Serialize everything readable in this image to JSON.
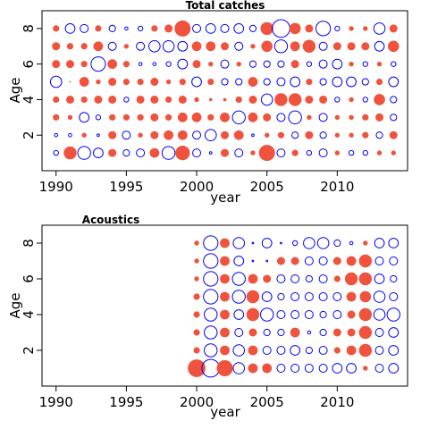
{
  "colors": {
    "positive": "#f0533d",
    "negative": "#0000ff",
    "axis": "#000000"
  },
  "chart_data": [
    {
      "type": "scatter",
      "title": "Total catches",
      "xlabel": "year",
      "ylabel": "Age",
      "xlim": [
        1989,
        2015
      ],
      "ylim": [
        0,
        9
      ],
      "xticks": [
        1990,
        1995,
        2000,
        2005,
        2010
      ],
      "yticks": [
        2,
        4,
        6,
        8
      ],
      "x": [
        1990,
        1991,
        1992,
        1993,
        1994,
        1995,
        1996,
        1997,
        1998,
        1999,
        2000,
        2001,
        2002,
        2003,
        2004,
        2005,
        2006,
        2007,
        2008,
        2009,
        2010,
        2011,
        2012,
        2013,
        2014
      ],
      "ages": [
        1,
        2,
        3,
        4,
        5,
        6,
        7,
        8
      ],
      "residuals": [
        [
          -0.3,
          0.8,
          -0.8,
          -0.6,
          0.5,
          -0.4,
          -0.5,
          0.6,
          -0.8,
          0.9,
          -0.5,
          -0.15,
          0.5,
          -0.5,
          0.3,
          1.0,
          -0.5,
          0.4,
          -0.3,
          -0.5,
          0.3,
          -0.3,
          -0.3,
          0.3,
          0.3
        ],
        [
          -0.2,
          -0.2,
          0.3,
          -0.15,
          0.5,
          -0.5,
          0.3,
          0.5,
          0.6,
          0.6,
          -0.5,
          -0.7,
          0.5,
          0.6,
          -0.15,
          0.3,
          0.4,
          -0.4,
          0.5,
          -0.4,
          0.3,
          0.3,
          0.4,
          -0.4,
          0.5
        ],
        [
          0.4,
          0.3,
          -0.6,
          -0.3,
          0.4,
          0.4,
          0.4,
          0.5,
          0.4,
          0.6,
          0.6,
          0.4,
          0.6,
          -0.8,
          0.6,
          0.5,
          -0.5,
          -0.8,
          0.3,
          -0.5,
          0.3,
          0.3,
          0.4,
          0.5,
          -0.4
        ],
        [
          0.4,
          0.5,
          0.4,
          0.5,
          0.5,
          -0.3,
          0.5,
          0.5,
          0.4,
          0.5,
          0.3,
          0.2,
          0.2,
          0.4,
          0.5,
          -0.7,
          0.8,
          0.8,
          0.5,
          0.5,
          -0.3,
          0.3,
          -0.3,
          0.7,
          -0.4
        ],
        [
          -0.7,
          0.1,
          0.6,
          0.3,
          0.5,
          0.4,
          0.4,
          0.5,
          0.3,
          0.4,
          -0.6,
          0.4,
          -0.4,
          -0.4,
          0.6,
          -0.4,
          -0.5,
          -0.6,
          0.4,
          -0.4,
          -0.6,
          -0.6,
          -0.4,
          0.4,
          -0.6
        ],
        [
          0.5,
          0.5,
          0.4,
          -0.9,
          0.6,
          0.4,
          -0.2,
          -0.2,
          -0.3,
          -0.6,
          0.5,
          0.3,
          -0.5,
          0.3,
          -0.4,
          -0.4,
          -0.4,
          0.5,
          -0.3,
          -0.5,
          -0.6,
          0.3,
          -0.3,
          0.3,
          -0.3
        ],
        [
          0.5,
          0.4,
          0.4,
          0.6,
          -0.5,
          0.3,
          -0.5,
          -0.7,
          -0.7,
          -0.6,
          0.6,
          0.6,
          0.5,
          -0.5,
          0.3,
          0.7,
          -0.8,
          0.6,
          0.8,
          -0.5,
          0.5,
          0.5,
          0.5,
          -0.6,
          0.7
        ],
        [
          0.4,
          -0.6,
          -0.5,
          0.4,
          -0.4,
          -0.2,
          -0.3,
          0.4,
          0.5,
          1.0,
          -0.5,
          -0.6,
          -0.5,
          -0.6,
          -0.4,
          0.8,
          -1.1,
          0.7,
          0.5,
          -0.9,
          -0.3,
          0.3,
          0.3,
          -0.7,
          0.5
        ]
      ]
    },
    {
      "type": "scatter",
      "title": "Acoustics",
      "xlabel": "year",
      "ylabel": "Age",
      "xlim": [
        1989,
        2015
      ],
      "ylim": [
        0,
        9
      ],
      "xticks": [
        1990,
        1995,
        2000,
        2005,
        2010
      ],
      "yticks": [
        2,
        4,
        6,
        8
      ],
      "x": [
        2000,
        2001,
        2002,
        2003,
        2004,
        2005,
        2006,
        2007,
        2008,
        2009,
        2010,
        2011,
        2012,
        2013,
        2014
      ],
      "ages": [
        1,
        2,
        3,
        4,
        5,
        6,
        7,
        8
      ],
      "residuals": [
        [
          1.1,
          -1.1,
          1.0,
          -0.7,
          0.6,
          0.6,
          -0.5,
          -0.5,
          -0.5,
          -0.5,
          -0.6,
          -0.6,
          0.3,
          -0.5,
          -0.6
        ],
        [
          0.4,
          -0.8,
          0.6,
          -0.7,
          0.6,
          -0.5,
          -0.5,
          -0.6,
          -0.4,
          -0.5,
          0.4,
          0.6,
          0.8,
          -0.5,
          -0.6
        ],
        [
          0.4,
          -0.8,
          0.6,
          -0.5,
          0.5,
          -0.4,
          -0.4,
          0.6,
          -0.2,
          -0.4,
          0.5,
          0.5,
          0.8,
          -0.5,
          -0.6
        ],
        [
          0.4,
          -0.8,
          0.6,
          -0.6,
          0.8,
          -0.8,
          -0.5,
          -0.5,
          -0.5,
          -0.4,
          -0.5,
          0.5,
          0.8,
          -0.7,
          -0.8
        ],
        [
          0.4,
          -0.9,
          0.6,
          -0.8,
          0.8,
          -0.6,
          -0.4,
          -0.5,
          -0.5,
          -0.5,
          -0.5,
          0.6,
          0.7,
          -0.7,
          -0.5
        ],
        [
          0.3,
          -0.9,
          0.6,
          -0.8,
          0.6,
          0.5,
          -0.5,
          -0.5,
          -0.4,
          -0.5,
          0.4,
          0.8,
          0.8,
          -0.6,
          -0.4
        ],
        [
          0.3,
          -0.9,
          0.6,
          -0.6,
          -0.1,
          -0.1,
          0.5,
          0.5,
          -0.5,
          -0.5,
          0.5,
          0.6,
          0.8,
          -0.5,
          -0.5
        ],
        [
          0.3,
          -0.9,
          0.6,
          -0.7,
          -0.1,
          -0.6,
          -0.1,
          -0.3,
          -0.7,
          -0.7,
          -0.4,
          -0.2,
          0.3,
          -0.6,
          -0.6
        ]
      ]
    }
  ]
}
